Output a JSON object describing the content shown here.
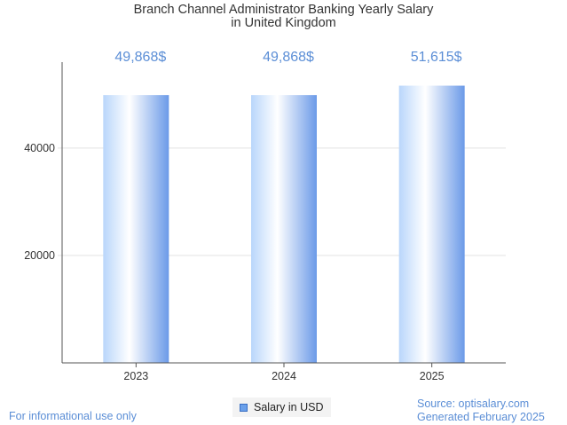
{
  "chart_data": {
    "type": "bar",
    "title_lines": [
      "Branch Channel Administrator Banking Yearly Salary",
      "in United Kingdom"
    ],
    "categories": [
      "2023",
      "2024",
      "2025"
    ],
    "series": [
      {
        "name": "Salary in USD",
        "values": [
          49868,
          49868,
          51615
        ]
      }
    ],
    "data_labels": [
      "49,868$",
      "49,868$",
      "51,615$"
    ],
    "y_ticks": [
      20000,
      40000
    ],
    "ylim": [
      0,
      56000
    ],
    "grid": true,
    "legend_position": "bottom-center",
    "colors": {
      "bar_light": "#ffffff",
      "bar_mid": "#b9d6fb",
      "bar_dark": "#6b9ae8",
      "data_label": "#5b8ed6",
      "grid": "#e3e3e3",
      "axis": "#555555"
    }
  },
  "legend": {
    "label": "Salary in USD"
  },
  "footer": {
    "left": "For informational use only",
    "source": "Source: optisalary.com",
    "generated": "Generated February 2025"
  }
}
